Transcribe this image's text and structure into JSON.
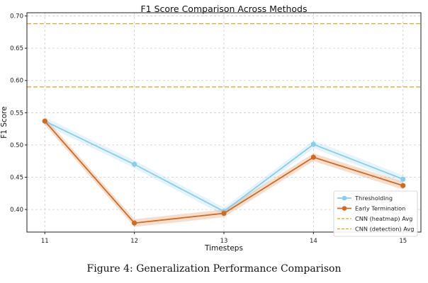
{
  "chart_data": {
    "type": "line",
    "title": "F1 Score Comparison Across Methods",
    "xlabel": "Timesteps",
    "ylabel": "F1 Score",
    "x": [
      11,
      12,
      13,
      14,
      15
    ],
    "xticks": [
      "11",
      "12",
      "13",
      "14",
      "15"
    ],
    "ylim": [
      0.365,
      0.705
    ],
    "yticks": [
      "0.40",
      "0.45",
      "0.50",
      "0.55",
      "0.60",
      "0.65",
      "0.70"
    ],
    "grid": true,
    "legend_position": "lower right",
    "series": [
      {
        "name": "Thresholding",
        "color": "#87ceeb",
        "values": [
          0.537,
          0.47,
          0.397,
          0.501,
          0.447
        ]
      },
      {
        "name": "Early Termination",
        "color": "#d2691e",
        "values": [
          0.537,
          0.379,
          0.394,
          0.481,
          0.437
        ]
      }
    ],
    "reference_lines": [
      {
        "name": "CNN (heatmap) Avg",
        "color": "#daa520",
        "value": 0.688
      },
      {
        "name": "CNN (detection) Avg",
        "color": "#daa520",
        "value": 0.59
      }
    ]
  },
  "caption": "Figure 4: Generalization Performance Comparison"
}
